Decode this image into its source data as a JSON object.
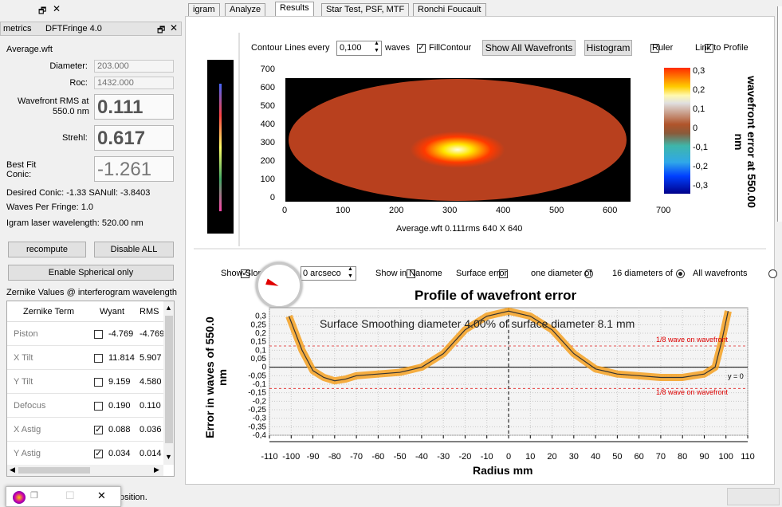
{
  "left": {
    "title_bar_fragment": "",
    "metrics_title": "metrics",
    "dft_title": "DFTFringe 4.0",
    "file": "Average.wft",
    "diameter_label": "Diameter:",
    "diameter_value": "203.000",
    "roc_label": "Roc:",
    "roc_value": "1432.000",
    "rms_label": "Wavefront RMS at",
    "rms_label2": "550.0 nm",
    "rms_value": "0.111",
    "strehl_label": "Strehl:",
    "strehl_value": "0.617",
    "conic_label": "Best Fit",
    "conic_label2": "Conic:",
    "conic_value": "-1.261",
    "desired": "Desired Conic:  -1.33 SANull: -3.8403",
    "wpf": "Waves Per Fringe: 1.0",
    "laser": "Igram laser wavelength: 520.00 nm",
    "recompute": "recompute",
    "disable_all": "Disable ALL",
    "enable_spherical": "Enable Spherical only",
    "zernike_title": "Zernike Values @ interferogram wavelength",
    "zt_headers": [
      "Zernike Term",
      "Wyant",
      "RMS"
    ],
    "zt_rows": [
      {
        "term": "Piston",
        "checked": false,
        "wyant": "-4.769",
        "rms": "-4.769"
      },
      {
        "term": "X Tilt",
        "checked": false,
        "wyant": "11.814",
        "rms": "5.907"
      },
      {
        "term": "Y Tilt",
        "checked": false,
        "wyant": "9.159",
        "rms": "4.580"
      },
      {
        "term": "Defocus",
        "checked": false,
        "wyant": "0.190",
        "rms": "0.110"
      },
      {
        "term": "X Astig",
        "checked": true,
        "wyant": "0.088",
        "rms": "0.036"
      },
      {
        "term": "Y Astig",
        "checked": true,
        "wyant": "0.034",
        "rms": "0.014"
      }
    ],
    "status_fragment": "osition."
  },
  "tabs": [
    "igram",
    "Analyze",
    "Results",
    "Star Test, PSF, MTF",
    "Ronchi  Foucault"
  ],
  "top_controls": {
    "contour_label": "Contour Lines every",
    "contour_value": "0,100",
    "waves_label": "waves",
    "fill_contour": "FillContour",
    "show_all": "Show All Wavefronts",
    "histogram": "Histogram",
    "ruler": "Ruler",
    "link_profile": "Link to Profile"
  },
  "contour_plot": {
    "y_ticks": [
      "700",
      "600",
      "500",
      "400",
      "300",
      "200",
      "100",
      "0"
    ],
    "x_ticks": [
      "0",
      "100",
      "200",
      "300",
      "400",
      "500",
      "600",
      "700"
    ],
    "caption": "Average.wft  0.111rms 640 X 640",
    "colorbar_ticks": [
      "0,3",
      "0,2",
      "0,1",
      "0",
      "-0,1",
      "-0,2",
      "-0,3"
    ],
    "colorbar_title": "wavefront error at 550.00 nm"
  },
  "profile_controls": {
    "show_slope": "Show Slope",
    "arcsec_value": "0 arcseco",
    "show_nano": "Show in Nanome",
    "surface_error": "Surface error",
    "one_diameter": "one diameter of",
    "sixteen_diameters": "16 diameters of",
    "all_wavefronts": "All wavefronts"
  },
  "profile_plot": {
    "title": "Profile of wavefront error",
    "ylabel": "Error in waves of  550.0 nm",
    "xlabel": "Radius mm",
    "smoothing_text": "Surface Smoothing diameter   4.00% of surface diameter     8.1 mm",
    "ref_label_top": "1/8 wave on wavefront",
    "ref_label_bottom": "1/8 wave on wavefront",
    "y0_label": "y = 0",
    "y_ticks": [
      "0,3",
      "0,25",
      "0,2",
      "0,15",
      "0,1",
      "0,05",
      "0",
      "-0,05",
      "-0,1",
      "-0,15",
      "-0,2",
      "-0,25",
      "-0,3",
      "-0,35",
      "-0,4"
    ],
    "x_ticks": [
      "-110",
      "-100",
      "-90",
      "-80",
      "-70",
      "-60",
      "-50",
      "-40",
      "-30",
      "-20",
      "-10",
      "0",
      "10",
      "20",
      "30",
      "40",
      "50",
      "60",
      "70",
      "80",
      "90",
      "100",
      "110"
    ]
  },
  "chart_data": {
    "type": "line",
    "title": "Profile of wavefront error",
    "xlabel": "Radius mm",
    "ylabel": "Error in waves of  550.0 nm",
    "xlim": [
      -110,
      110
    ],
    "ylim": [
      -0.4,
      0.35
    ],
    "x": [
      -101,
      -98,
      -95,
      -90,
      -85,
      -80,
      -75,
      -70,
      -60,
      -50,
      -40,
      -30,
      -20,
      -10,
      0,
      10,
      20,
      30,
      40,
      50,
      60,
      70,
      80,
      85,
      90,
      95,
      98,
      101
    ],
    "series": [
      {
        "values": [
          0.3,
          0.2,
          0.1,
          -0.02,
          -0.06,
          -0.08,
          -0.07,
          -0.05,
          -0.04,
          -0.03,
          0.0,
          0.08,
          0.22,
          0.3,
          0.33,
          0.3,
          0.22,
          0.08,
          -0.01,
          -0.04,
          -0.05,
          -0.06,
          -0.06,
          -0.05,
          -0.04,
          0.0,
          0.15,
          0.33
        ]
      }
    ],
    "reference_lines": [
      0.125,
      0,
      -0.125
    ]
  }
}
